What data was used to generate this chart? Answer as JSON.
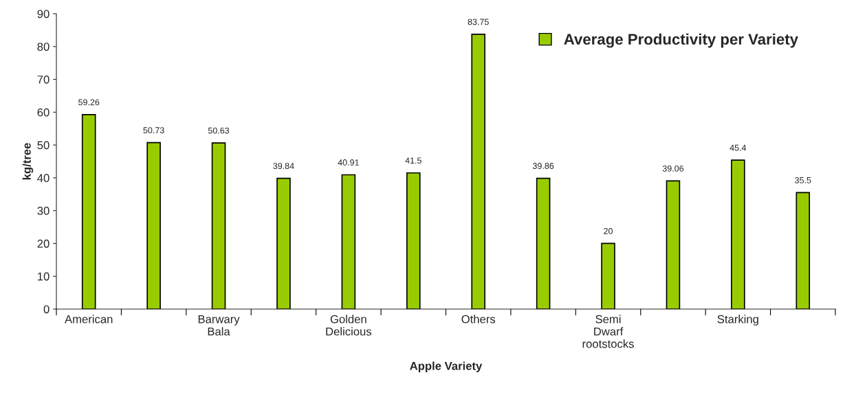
{
  "chart_data": {
    "type": "bar",
    "xlabel": "Apple Variety",
    "ylabel": "kg/tree",
    "categories": [
      "American",
      null,
      "Barwary Bala",
      null,
      "Golden Delicious",
      null,
      "Others",
      null,
      "Semi Dwarf rootstocks",
      null,
      "Starking",
      null
    ],
    "series": [
      {
        "name": "Average Productivity per Variety",
        "color": "#99cc00",
        "values": [
          59.26,
          50.73,
          50.63,
          39.84,
          40.91,
          41.5,
          83.75,
          39.86,
          20,
          39.06,
          45.4,
          35.5
        ]
      }
    ],
    "ylim": [
      0,
      90
    ],
    "yticks": [
      0,
      10,
      20,
      30,
      40,
      50,
      60,
      70,
      80,
      90
    ],
    "data_labels": true,
    "grid": false,
    "legend": "top right"
  }
}
